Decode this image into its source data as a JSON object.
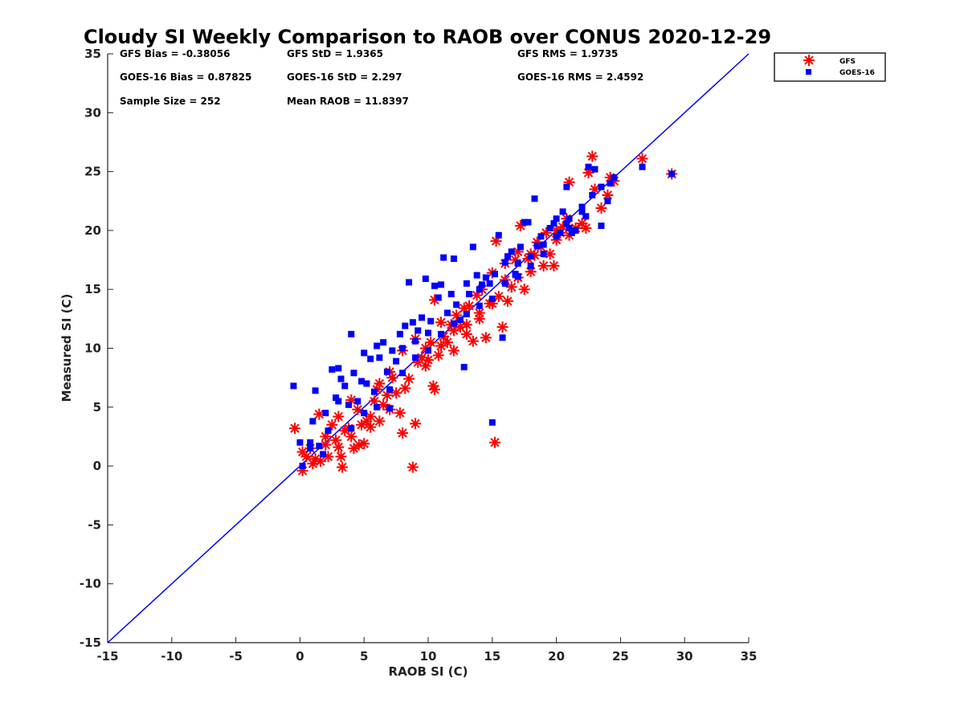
{
  "chart_data": {
    "type": "scatter",
    "title": "Cloudy SI Weekly Comparison to RAOB over CONUS 2020-12-29",
    "xlabel": "RAOB SI (C)",
    "ylabel": "Measured SI (C)",
    "xlim": [
      -15,
      35
    ],
    "ylim": [
      -15,
      35
    ],
    "xticks": [
      "-15",
      "-10",
      "-5",
      "0",
      "5",
      "10",
      "15",
      "20",
      "25",
      "30",
      "35"
    ],
    "yticks": [
      "-15",
      "-10",
      "-5",
      "0",
      "5",
      "10",
      "15",
      "20",
      "25",
      "30",
      "35"
    ],
    "grid": false,
    "legend_position": "outside-top-right",
    "reference_line": {
      "x": [
        -15,
        35
      ],
      "y": [
        -15,
        35
      ],
      "color": "#0000ff"
    },
    "stats": [
      {
        "label": "GFS Bias = -0.38056"
      },
      {
        "label": "GFS StD = 1.9365"
      },
      {
        "label": "GFS RMS = 1.9735"
      },
      {
        "label": "GOES-16 Bias = 0.87825"
      },
      {
        "label": "GOES-16 StD = 2.297"
      },
      {
        "label": "GOES-16 RMS = 2.4592"
      },
      {
        "label": "Sample Size = 252"
      },
      {
        "label": "Mean RAOB = 11.8397"
      }
    ],
    "series": [
      {
        "name": "GFS",
        "marker": "asterisk",
        "color": "#ff0000",
        "points": [
          [
            -0.4,
            3.2
          ],
          [
            0.2,
            1.2
          ],
          [
            0.2,
            -0.4
          ],
          [
            0.5,
            0.8
          ],
          [
            0.8,
            1.5
          ],
          [
            1.0,
            0.2
          ],
          [
            1.2,
            0.6
          ],
          [
            1.5,
            4.4
          ],
          [
            1.6,
            0.4
          ],
          [
            2.0,
            1.8
          ],
          [
            2.2,
            0.8
          ],
          [
            2.5,
            3.5
          ],
          [
            2.8,
            2.2
          ],
          [
            3.0,
            1.6
          ],
          [
            3.2,
            0.8
          ],
          [
            3.3,
            -0.1
          ],
          [
            3.5,
            3.0
          ],
          [
            3.8,
            3.2
          ],
          [
            4.0,
            2.5
          ],
          [
            4.2,
            1.5
          ],
          [
            4.5,
            4.8
          ],
          [
            4.6,
            1.8
          ],
          [
            4.8,
            3.5
          ],
          [
            5.0,
            1.9
          ],
          [
            5.2,
            3.8
          ],
          [
            5.5,
            3.3
          ],
          [
            5.8,
            5.5
          ],
          [
            6.0,
            6.5
          ],
          [
            6.2,
            7.0
          ],
          [
            6.5,
            5.2
          ],
          [
            6.8,
            6.0
          ],
          [
            7.0,
            4.8
          ],
          [
            7.2,
            7.5
          ],
          [
            7.5,
            6.2
          ],
          [
            7.8,
            4.5
          ],
          [
            8.0,
            2.8
          ],
          [
            8.2,
            6.6
          ],
          [
            8.5,
            7.4
          ],
          [
            8.8,
            -0.1
          ],
          [
            9.0,
            3.6
          ],
          [
            9.2,
            8.8
          ],
          [
            9.5,
            9.2
          ],
          [
            9.8,
            8.5
          ],
          [
            10.0,
            9.0
          ],
          [
            10.2,
            10.5
          ],
          [
            10.4,
            6.8
          ],
          [
            10.5,
            6.5
          ],
          [
            10.5,
            14.1
          ],
          [
            10.8,
            9.4
          ],
          [
            11.0,
            10.2
          ],
          [
            11.2,
            11.0
          ],
          [
            11.5,
            10.5
          ],
          [
            11.8,
            12.0
          ],
          [
            12.0,
            11.5
          ],
          [
            12.2,
            12.8
          ],
          [
            12.5,
            11.8
          ],
          [
            12.8,
            13.4
          ],
          [
            13.0,
            12.0
          ],
          [
            13.2,
            13.6
          ],
          [
            13.5,
            10.6
          ],
          [
            13.8,
            14.5
          ],
          [
            14.0,
            12.5
          ],
          [
            14.2,
            15.0
          ],
          [
            14.5,
            10.9
          ],
          [
            14.8,
            13.8
          ],
          [
            15.0,
            16.4
          ],
          [
            15.2,
            2.0
          ],
          [
            15.3,
            19.1
          ],
          [
            15.5,
            14.4
          ],
          [
            15.8,
            11.8
          ],
          [
            16.0,
            15.8
          ],
          [
            16.2,
            14.0
          ],
          [
            16.5,
            15.2
          ],
          [
            16.8,
            17.5
          ],
          [
            17.0,
            16.0
          ],
          [
            17.2,
            20.4
          ],
          [
            17.5,
            15.0
          ],
          [
            17.8,
            17.6
          ],
          [
            18.0,
            18.0
          ],
          [
            18.3,
            17.9
          ],
          [
            18.5,
            19.0
          ],
          [
            18.8,
            18.6
          ],
          [
            19.0,
            17.0
          ],
          [
            19.5,
            18.0
          ],
          [
            19.8,
            17.0
          ],
          [
            20.0,
            19.2
          ],
          [
            20.3,
            19.8
          ],
          [
            20.5,
            20.3
          ],
          [
            20.8,
            21.0
          ],
          [
            21.0,
            24.1
          ],
          [
            21.5,
            20.2
          ],
          [
            22.0,
            20.6
          ],
          [
            22.3,
            20.2
          ],
          [
            22.5,
            24.9
          ],
          [
            22.8,
            26.3
          ],
          [
            23.0,
            23.5
          ],
          [
            23.5,
            21.9
          ],
          [
            24.0,
            23.0
          ],
          [
            24.2,
            24.5
          ],
          [
            24.5,
            24.2
          ],
          [
            26.7,
            26.1
          ],
          [
            29.0,
            24.8
          ],
          [
            2.0,
            2.5
          ],
          [
            3.0,
            4.2
          ],
          [
            4.0,
            5.6
          ],
          [
            5.5,
            4.2
          ],
          [
            6.2,
            3.8
          ],
          [
            7.0,
            8.0
          ],
          [
            8.0,
            9.8
          ],
          [
            9.0,
            10.8
          ],
          [
            9.8,
            10.0
          ],
          [
            11.0,
            12.2
          ],
          [
            12.0,
            9.8
          ],
          [
            13.0,
            11.2
          ],
          [
            14.0,
            13.0
          ],
          [
            15.0,
            13.8
          ],
          [
            16.0,
            17.2
          ],
          [
            17.0,
            18.2
          ],
          [
            18.0,
            16.5
          ],
          [
            19.2,
            19.8
          ],
          [
            20.0,
            20.0
          ],
          [
            21.0,
            19.6
          ]
        ]
      },
      {
        "name": "GOES-16",
        "marker": "square",
        "color": "#0000ff",
        "points": [
          [
            -0.5,
            6.8
          ],
          [
            0.0,
            2.0
          ],
          [
            0.2,
            0.0
          ],
          [
            0.8,
            1.5
          ],
          [
            0.8,
            2.0
          ],
          [
            1.0,
            3.8
          ],
          [
            1.2,
            6.4
          ],
          [
            1.5,
            1.7
          ],
          [
            1.8,
            1.0
          ],
          [
            2.0,
            4.5
          ],
          [
            2.2,
            3.0
          ],
          [
            2.5,
            8.2
          ],
          [
            2.8,
            5.8
          ],
          [
            3.0,
            8.3
          ],
          [
            3.2,
            7.4
          ],
          [
            3.5,
            6.8
          ],
          [
            3.8,
            5.2
          ],
          [
            4.0,
            11.2
          ],
          [
            4.2,
            7.9
          ],
          [
            4.5,
            5.5
          ],
          [
            4.8,
            7.2
          ],
          [
            5.0,
            9.6
          ],
          [
            5.2,
            7.0
          ],
          [
            5.5,
            9.1
          ],
          [
            5.8,
            6.3
          ],
          [
            6.0,
            10.2
          ],
          [
            6.2,
            9.2
          ],
          [
            6.5,
            10.5
          ],
          [
            6.8,
            8.0
          ],
          [
            7.0,
            6.5
          ],
          [
            7.2,
            9.8
          ],
          [
            7.5,
            8.9
          ],
          [
            7.8,
            11.2
          ],
          [
            8.0,
            10.0
          ],
          [
            8.2,
            11.9
          ],
          [
            8.5,
            15.6
          ],
          [
            8.8,
            12.2
          ],
          [
            9.0,
            10.6
          ],
          [
            9.2,
            11.5
          ],
          [
            9.5,
            12.6
          ],
          [
            9.8,
            15.9
          ],
          [
            10.0,
            11.3
          ],
          [
            10.2,
            12.3
          ],
          [
            10.5,
            15.3
          ],
          [
            10.8,
            14.3
          ],
          [
            11.0,
            15.4
          ],
          [
            11.2,
            17.7
          ],
          [
            11.5,
            13.0
          ],
          [
            11.8,
            14.6
          ],
          [
            12.0,
            17.6
          ],
          [
            12.2,
            13.7
          ],
          [
            12.5,
            12.4
          ],
          [
            12.8,
            8.4
          ],
          [
            13.0,
            15.5
          ],
          [
            13.2,
            14.6
          ],
          [
            13.5,
            18.6
          ],
          [
            13.8,
            16.2
          ],
          [
            14.0,
            15.0
          ],
          [
            14.2,
            15.4
          ],
          [
            14.5,
            16.0
          ],
          [
            14.8,
            15.5
          ],
          [
            15.0,
            3.7
          ],
          [
            15.2,
            16.3
          ],
          [
            15.5,
            19.6
          ],
          [
            15.8,
            10.9
          ],
          [
            16.0,
            17.3
          ],
          [
            16.2,
            17.8
          ],
          [
            16.5,
            18.2
          ],
          [
            16.8,
            16.3
          ],
          [
            17.0,
            17.2
          ],
          [
            17.2,
            18.6
          ],
          [
            17.5,
            20.7
          ],
          [
            17.8,
            20.7
          ],
          [
            18.0,
            17.0
          ],
          [
            18.3,
            22.7
          ],
          [
            18.5,
            18.7
          ],
          [
            18.8,
            19.5
          ],
          [
            19.0,
            18.0
          ],
          [
            19.5,
            20.2
          ],
          [
            19.8,
            20.6
          ],
          [
            20.0,
            21.0
          ],
          [
            20.3,
            19.8
          ],
          [
            20.5,
            21.6
          ],
          [
            20.8,
            20.6
          ],
          [
            21.0,
            20.2
          ],
          [
            21.2,
            19.8
          ],
          [
            21.5,
            20.0
          ],
          [
            22.0,
            21.6
          ],
          [
            22.3,
            21.2
          ],
          [
            22.5,
            25.4
          ],
          [
            22.8,
            23.0
          ],
          [
            23.0,
            25.2
          ],
          [
            23.5,
            23.7
          ],
          [
            23.5,
            20.4
          ],
          [
            24.0,
            22.5
          ],
          [
            24.2,
            24.0
          ],
          [
            24.5,
            24.5
          ],
          [
            26.7,
            25.4
          ],
          [
            29.0,
            24.8
          ],
          [
            20.8,
            23.7
          ],
          [
            3.0,
            5.5
          ],
          [
            4.0,
            3.2
          ],
          [
            5.0,
            4.5
          ],
          [
            6.0,
            5.0
          ],
          [
            7.0,
            4.9
          ],
          [
            8.0,
            7.9
          ],
          [
            9.0,
            9.2
          ],
          [
            10.0,
            9.8
          ],
          [
            11.0,
            11.2
          ],
          [
            12.0,
            12.1
          ],
          [
            13.0,
            12.9
          ],
          [
            14.0,
            13.6
          ],
          [
            15.0,
            14.2
          ],
          [
            16.0,
            15.5
          ],
          [
            17.0,
            16.1
          ],
          [
            18.0,
            17.8
          ],
          [
            19.0,
            18.8
          ],
          [
            20.0,
            19.5
          ],
          [
            21.0,
            21.0
          ],
          [
            22.0,
            22.0
          ]
        ]
      }
    ]
  }
}
